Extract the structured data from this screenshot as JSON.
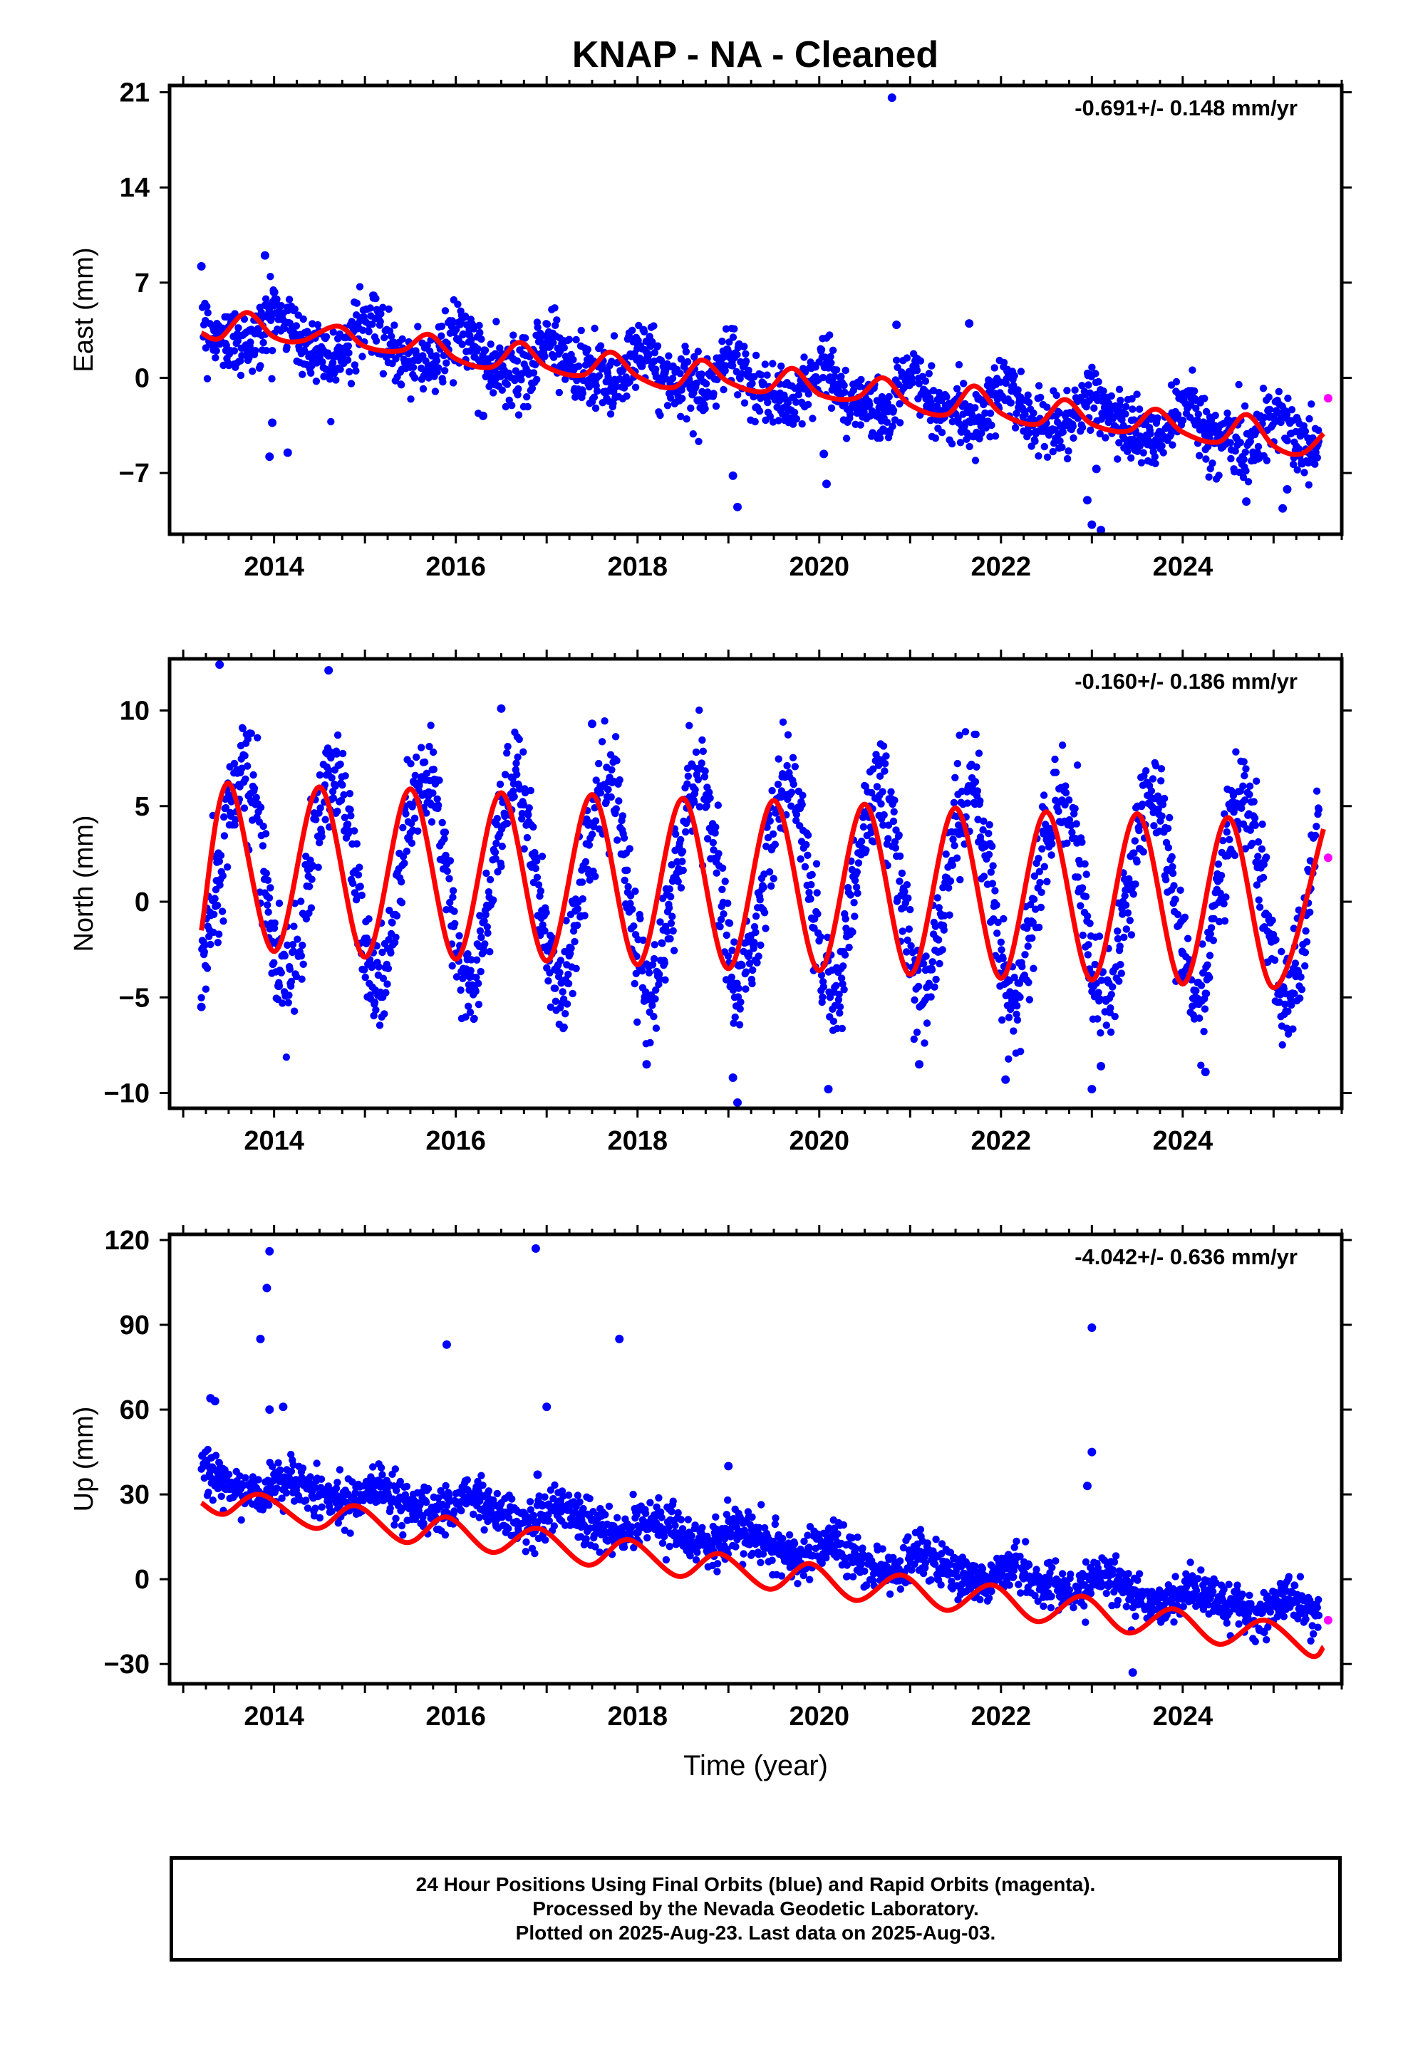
{
  "title": "KNAP  - NA - Cleaned",
  "colors": {
    "final_orbits": "#0000ff",
    "rapid_orbits": "#ff00ff",
    "model_fit": "#ff0000",
    "frame": "#000000"
  },
  "chart_data": [
    {
      "type": "scatter",
      "component": "east",
      "ylabel": "East (mm)",
      "xlabel": "",
      "rate_label": "-0.691+/- 0.148 mm/yr",
      "xlim": [
        2012.85,
        2025.75
      ],
      "ylim": [
        -11.5,
        21.5
      ],
      "yticks": [
        -7,
        0,
        7,
        14,
        21
      ],
      "ytick_labels": [
        "−7",
        "0",
        "7",
        "14",
        "21"
      ],
      "xticks": [
        2014,
        2016,
        2018,
        2020,
        2022,
        2024
      ],
      "xtick_labels": [
        "2014",
        "2016",
        "2018",
        "2020",
        "2022",
        "2024"
      ],
      "series": [
        {
          "type": "scatter",
          "color": "#0000ff",
          "trend": {
            "start": [
              2013.2,
              3.8
            ],
            "end": [
              2025.5,
              -4.7
            ]
          },
          "seasonal": {
            "annual": 1.3,
            "semiannual": 0.5,
            "phase": 1.2
          },
          "scatter_sd": 1.2,
          "outliers": [
            [
              2013.2,
              8.2
            ],
            [
              2013.9,
              9.0
            ],
            [
              2014.0,
              6.3
            ],
            [
              2013.95,
              -5.8
            ],
            [
              2014.15,
              -5.5
            ],
            [
              2013.98,
              -3.3
            ],
            [
              2016.3,
              -2.8
            ],
            [
              2019.1,
              -9.5
            ],
            [
              2019.05,
              -7.2
            ],
            [
              2020.08,
              -7.8
            ],
            [
              2020.05,
              -5.6
            ],
            [
              2020.8,
              20.6
            ],
            [
              2020.85,
              3.9
            ],
            [
              2021.65,
              4.0
            ],
            [
              2023.0,
              -10.8
            ],
            [
              2023.1,
              -11.2
            ],
            [
              2022.95,
              -9.0
            ],
            [
              2023.05,
              -6.7
            ],
            [
              2024.7,
              -9.1
            ],
            [
              2025.1,
              -9.6
            ],
            [
              2025.15,
              -8.2
            ]
          ]
        },
        {
          "type": "line",
          "color": "#ff0000",
          "points": [
            [
              2013.2,
              3.3
            ],
            [
              2013.4,
              2.9
            ],
            [
              2013.7,
              4.8
            ],
            [
              2014.0,
              3.0
            ],
            [
              2014.3,
              2.7
            ],
            [
              2014.7,
              3.8
            ],
            [
              2015.0,
              2.3
            ],
            [
              2015.4,
              2.0
            ],
            [
              2015.7,
              3.2
            ],
            [
              2016.0,
              1.4
            ],
            [
              2016.4,
              0.8
            ],
            [
              2016.7,
              2.6
            ],
            [
              2017.0,
              0.8
            ],
            [
              2017.4,
              0.2
            ],
            [
              2017.7,
              1.9
            ],
            [
              2018.0,
              0.1
            ],
            [
              2018.4,
              -0.7
            ],
            [
              2018.7,
              1.3
            ],
            [
              2019.0,
              -0.3
            ],
            [
              2019.4,
              -1.0
            ],
            [
              2019.7,
              0.7
            ],
            [
              2020.0,
              -1.2
            ],
            [
              2020.4,
              -1.5
            ],
            [
              2020.7,
              0.0
            ],
            [
              2021.0,
              -2.0
            ],
            [
              2021.4,
              -2.7
            ],
            [
              2021.7,
              -0.6
            ],
            [
              2022.0,
              -2.6
            ],
            [
              2022.4,
              -3.4
            ],
            [
              2022.7,
              -1.6
            ],
            [
              2023.0,
              -3.4
            ],
            [
              2023.4,
              -3.9
            ],
            [
              2023.7,
              -2.3
            ],
            [
              2024.0,
              -4.0
            ],
            [
              2024.4,
              -4.7
            ],
            [
              2024.7,
              -2.7
            ],
            [
              2025.0,
              -5.0
            ],
            [
              2025.3,
              -5.6
            ],
            [
              2025.55,
              -4.1
            ]
          ]
        },
        {
          "type": "point",
          "color": "#ff00ff",
          "points": [
            [
              2025.6,
              -1.5
            ]
          ]
        }
      ]
    },
    {
      "type": "scatter",
      "component": "north",
      "ylabel": "North (mm)",
      "xlabel": "",
      "rate_label": "-0.160+/- 0.186 mm/yr",
      "xlim": [
        2012.85,
        2025.75
      ],
      "ylim": [
        -10.8,
        12.7
      ],
      "yticks": [
        -10,
        -5,
        0,
        5,
        10
      ],
      "ytick_labels": [
        "−10",
        "−5",
        "0",
        "5",
        "10"
      ],
      "xticks": [
        2014,
        2016,
        2018,
        2020,
        2022,
        2024
      ],
      "xtick_labels": [
        "2014",
        "2016",
        "2018",
        "2020",
        "2022",
        "2024"
      ],
      "series": [
        {
          "type": "scatter",
          "color": "#0000ff",
          "trend": {
            "start": [
              2013.2,
              1.5
            ],
            "end": [
              2025.5,
              0.2
            ]
          },
          "seasonal": {
            "annual": 5.3,
            "semiannual": 0.3,
            "phase": 3.8
          },
          "scatter_sd": 1.4,
          "outliers": [
            [
              2013.4,
              12.4
            ],
            [
              2014.6,
              12.1
            ],
            [
              2013.2,
              -5.5
            ],
            [
              2014.05,
              -4.4
            ],
            [
              2018.1,
              -8.5
            ],
            [
              2019.1,
              -10.5
            ],
            [
              2019.05,
              -9.2
            ],
            [
              2020.1,
              -9.8
            ],
            [
              2021.1,
              -8.5
            ],
            [
              2022.05,
              -9.3
            ],
            [
              2023.0,
              -9.8
            ],
            [
              2023.1,
              -8.6
            ],
            [
              2024.25,
              -8.9
            ],
            [
              2017.5,
              9.3
            ],
            [
              2016.5,
              10.1
            ]
          ]
        },
        {
          "type": "line",
          "color": "#ff0000",
          "points": [
            [
              2013.2,
              -1.5
            ],
            [
              2013.5,
              6.2
            ],
            [
              2014.0,
              -2.6
            ],
            [
              2014.5,
              6.0
            ],
            [
              2015.0,
              -2.9
            ],
            [
              2015.5,
              5.9
            ],
            [
              2016.0,
              -3.0
            ],
            [
              2016.5,
              5.7
            ],
            [
              2017.0,
              -3.1
            ],
            [
              2017.5,
              5.6
            ],
            [
              2018.0,
              -3.3
            ],
            [
              2018.5,
              5.4
            ],
            [
              2019.0,
              -3.5
            ],
            [
              2019.5,
              5.3
            ],
            [
              2020.0,
              -3.6
            ],
            [
              2020.5,
              5.1
            ],
            [
              2021.0,
              -3.8
            ],
            [
              2021.5,
              4.9
            ],
            [
              2022.0,
              -4.0
            ],
            [
              2022.5,
              4.7
            ],
            [
              2023.0,
              -4.1
            ],
            [
              2023.5,
              4.6
            ],
            [
              2024.0,
              -4.3
            ],
            [
              2024.5,
              4.4
            ],
            [
              2025.0,
              -4.5
            ],
            [
              2025.55,
              3.8
            ]
          ]
        },
        {
          "type": "point",
          "color": "#ff00ff",
          "points": [
            [
              2025.6,
              2.3
            ]
          ]
        }
      ]
    },
    {
      "type": "scatter",
      "component": "up",
      "ylabel": "Up (mm)",
      "xlabel": "Time (year)",
      "rate_label": "-4.042+/- 0.636 mm/yr",
      "xlim": [
        2012.85,
        2025.75
      ],
      "ylim": [
        -37,
        122
      ],
      "yticks": [
        -30,
        0,
        30,
        60,
        90,
        120
      ],
      "ytick_labels": [
        "−30",
        "0",
        "30",
        "60",
        "90",
        "120"
      ],
      "xticks": [
        2014,
        2016,
        2018,
        2020,
        2022,
        2024
      ],
      "xtick_labels": [
        "2014",
        "2016",
        "2018",
        "2020",
        "2022",
        "2024"
      ],
      "series": [
        {
          "type": "scatter",
          "color": "#0000ff",
          "trend": {
            "start": [
              2013.2,
              34.0
            ],
            "end": [
              2025.5,
              -12.0
            ]
          },
          "seasonal": {
            "annual": 3.5,
            "semiannual": 1.0,
            "phase": 0.3
          },
          "scatter_sd": 4.0,
          "step": {
            "at": 2020.0,
            "offset": -8.0
          },
          "outliers": [
            [
              2013.95,
              116.0
            ],
            [
              2013.92,
              103.0
            ],
            [
              2013.85,
              85.0
            ],
            [
              2013.95,
              60.0
            ],
            [
              2014.1,
              61.0
            ],
            [
              2013.3,
              64.0
            ],
            [
              2013.35,
              63.0
            ],
            [
              2015.9,
              83.0
            ],
            [
              2016.88,
              117.0
            ],
            [
              2017.0,
              61.0
            ],
            [
              2016.9,
              37.0
            ],
            [
              2017.8,
              85.0
            ],
            [
              2019.0,
              40.0
            ],
            [
              2023.0,
              89.0
            ],
            [
              2023.0,
              45.0
            ],
            [
              2022.95,
              33.0
            ],
            [
              2023.45,
              -33.0
            ]
          ]
        },
        {
          "type": "line",
          "color": "#ff0000",
          "points": [
            [
              2013.2,
              27.0
            ],
            [
              2013.45,
              23.0
            ],
            [
              2013.85,
              30.0
            ],
            [
              2014.45,
              18.0
            ],
            [
              2014.9,
              26.0
            ],
            [
              2015.45,
              13.0
            ],
            [
              2015.9,
              22.0
            ],
            [
              2016.4,
              9.5
            ],
            [
              2016.9,
              18.0
            ],
            [
              2017.45,
              5.0
            ],
            [
              2017.9,
              14.0
            ],
            [
              2018.45,
              1.0
            ],
            [
              2018.9,
              9.0
            ],
            [
              2019.45,
              -3.5
            ],
            [
              2019.9,
              5.5
            ],
            [
              2020.4,
              -7.5
            ],
            [
              2020.9,
              1.5
            ],
            [
              2021.4,
              -11.0
            ],
            [
              2021.9,
              -2.0
            ],
            [
              2022.4,
              -15.0
            ],
            [
              2022.9,
              -6.0
            ],
            [
              2023.4,
              -19.0
            ],
            [
              2023.9,
              -10.5
            ],
            [
              2024.4,
              -23.0
            ],
            [
              2024.9,
              -14.5
            ],
            [
              2025.4,
              -27.0
            ],
            [
              2025.55,
              -24.0
            ]
          ]
        },
        {
          "type": "point",
          "color": "#ff00ff",
          "points": [
            [
              2025.6,
              -14.5
            ]
          ]
        }
      ]
    }
  ],
  "footer": {
    "line1": "24 Hour Positions Using Final Orbits (blue) and Rapid Orbits (magenta).",
    "line2": "Processed by the Nevada Geodetic Laboratory.",
    "line3": "Plotted on 2025-Aug-23. Last data on 2025-Aug-03."
  }
}
